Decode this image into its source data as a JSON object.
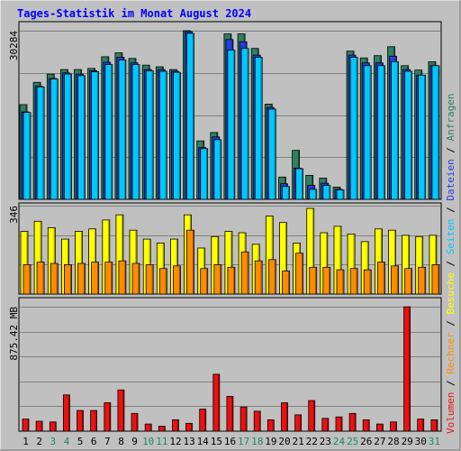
{
  "chart_data": {
    "type": "bar",
    "title": "Tages-Statistik im Monat August 2024",
    "colors": {
      "title": "#0000ff",
      "plot_bg": "#c0c0c0",
      "anfragen": "#2f8060",
      "dateien": "#2040e0",
      "seiten": "#00c8ff",
      "besuche": "#ffff00",
      "rechner": "#ff8c00",
      "volumen": "#ee1010",
      "weekend_label": "#1a8a6a"
    },
    "categories": [
      "1",
      "2",
      "3",
      "4",
      "5",
      "6",
      "7",
      "8",
      "9",
      "10",
      "11",
      "12",
      "13",
      "14",
      "15",
      "16",
      "17",
      "18",
      "19",
      "20",
      "21",
      "22",
      "23",
      "24",
      "25",
      "26",
      "27",
      "28",
      "29",
      "30",
      "31"
    ],
    "weekend_days": [
      "3",
      "4",
      "10",
      "11",
      "17",
      "18",
      "24",
      "25",
      "31"
    ],
    "panels": [
      {
        "id": "hits",
        "axis_max_label": "30284",
        "axis_max": 30284,
        "legend": [
          "Anfragen",
          "Dateien",
          "Seiten"
        ],
        "separator": "/",
        "series": [
          {
            "name": "Anfragen",
            "values": [
              17000,
              21000,
              22500,
              23300,
              23300,
              23500,
              25600,
              26300,
              25300,
              24100,
              23800,
              23300,
              30300,
              10500,
              12000,
              29700,
              29700,
              27100,
              17100,
              4000,
              8800,
              4300,
              3800,
              2200,
              26600,
              25400,
              25800,
              27400,
              24000,
              23200,
              24700
            ]
          },
          {
            "name": "Dateien",
            "values": [
              15700,
              20300,
              21700,
              22700,
              22500,
              23100,
              24600,
              25500,
              24500,
              23300,
              23300,
              23000,
              30100,
              9300,
              11200,
              28700,
              28300,
              25900,
              16500,
              2800,
              5600,
              2500,
              2900,
              1800,
              25900,
              24500,
              24500,
              25700,
              23300,
              22300,
              24000
            ]
          },
          {
            "name": "Seiten",
            "values": [
              15600,
              20200,
              21600,
              22500,
              22200,
              22900,
              24200,
              25000,
              24200,
              23100,
              23000,
              22800,
              29800,
              9100,
              10700,
              26800,
              27100,
              25500,
              16200,
              2300,
              5500,
              1800,
              2500,
              1700,
              25500,
              24000,
              24000,
              24700,
              23000,
              22300,
              24000
            ]
          }
        ]
      },
      {
        "id": "visits",
        "axis_max_label": "346",
        "axis_max": 346,
        "legend": [
          "Besuche",
          "Rechner"
        ],
        "separator": "/",
        "series": [
          {
            "name": "Besuche",
            "values": [
              245,
              285,
              260,
              215,
              245,
              255,
              290,
              310,
              250,
              215,
              200,
              215,
              310,
              180,
              225,
              245,
              240,
              195,
              305,
              280,
              200,
              335,
              240,
              265,
              235,
              205,
              255,
              250,
              230,
              225,
              230
            ]
          },
          {
            "name": "Rechner",
            "values": [
              115,
              125,
              120,
              115,
              120,
              125,
              125,
              130,
              120,
              115,
              100,
              110,
              250,
              100,
              115,
              105,
              165,
              130,
              135,
              90,
              160,
              105,
              105,
              95,
              100,
              95,
              125,
              110,
              100,
              105,
              115
            ]
          }
        ]
      },
      {
        "id": "volume",
        "axis_max_label": "875.42 MB",
        "axis_max": 875.42,
        "legend": [
          "Volumen"
        ],
        "separator": "/",
        "series": [
          {
            "name": "Volumen",
            "values": [
              85,
              70,
              65,
              255,
              145,
              145,
              200,
              290,
              125,
              50,
              35,
              80,
              55,
              155,
              400,
              245,
              170,
              140,
              80,
              200,
              115,
              215,
              90,
              100,
              125,
              80,
              50,
              65,
              875,
              85,
              80
            ]
          }
        ]
      }
    ],
    "right_legend_lines": [
      {
        "text": "Volumen / Rechner / Besuche / ",
        "colors": [
          "volumen",
          "rechner",
          "besuche"
        ]
      },
      {
        "text": "Seiten / Dateien / Anfragen",
        "colors": [
          "seiten",
          "dateien",
          "anfragen"
        ]
      }
    ]
  }
}
